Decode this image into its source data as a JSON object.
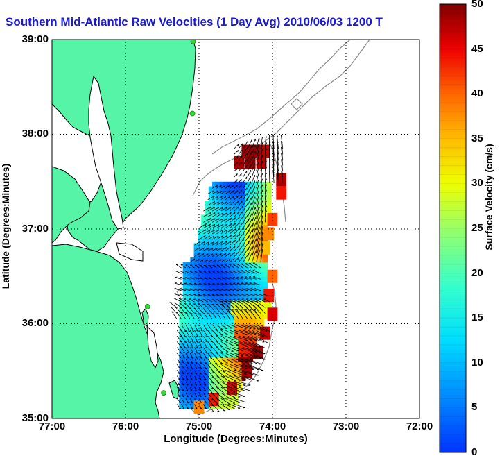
{
  "title": "Southern Mid-Atlantic Raw Velocities (1 Day Avg) 2010/06/03 1200 ",
  "title_suffix": "T",
  "axes": {
    "xlabel": "Longitude (Degrees:Minutes)",
    "ylabel": "Latitude (Degrees:Minutes)",
    "xticks": [
      "77:00",
      "76:00",
      "75:00",
      "74:00",
      "73:00",
      "72:00"
    ],
    "yticks": [
      "39:00",
      "38:00",
      "37:00",
      "36:00",
      "35:00"
    ],
    "xlim": [
      -77,
      -72
    ],
    "ylim": [
      35,
      39
    ],
    "grid": true
  },
  "colorbar": {
    "label": "Surface Velocity (cm/s)",
    "ticks": [
      "50",
      "45",
      "40",
      "35",
      "30",
      "25",
      "20",
      "15",
      "10",
      "5",
      "0"
    ],
    "range": [
      0,
      50
    ],
    "colormap": "jet"
  },
  "colors": {
    "land": "#55f4a6",
    "coastline": "#000000",
    "bathymetry": "#8a8a8a",
    "title": "#1a1ad6",
    "station": "#33dd33"
  },
  "stations": [
    {
      "lon": -75.08,
      "lat": 38.98
    },
    {
      "lon": -75.09,
      "lat": 38.22
    },
    {
      "lon": -75.7,
      "lat": 36.18
    },
    {
      "lon": -75.48,
      "lat": 35.27
    }
  ],
  "field_cells": [
    {
      "lon": -74.35,
      "lat": 37.82,
      "v": 49
    },
    {
      "lon": -74.23,
      "lat": 37.82,
      "v": 49
    },
    {
      "lon": -74.1,
      "lat": 37.82,
      "v": 47
    },
    {
      "lon": -74.45,
      "lat": 37.7,
      "v": 48
    },
    {
      "lon": -74.3,
      "lat": 37.7,
      "v": 49
    },
    {
      "lon": -74.15,
      "lat": 37.7,
      "v": 47
    },
    {
      "lon": -73.88,
      "lat": 37.52,
      "v": 48
    },
    {
      "lon": -73.88,
      "lat": 37.38,
      "v": 44
    },
    {
      "lon": -74.0,
      "lat": 37.1,
      "v": 42
    },
    {
      "lon": -74.05,
      "lat": 36.95,
      "v": 38
    },
    {
      "lon": -74.1,
      "lat": 36.8,
      "v": 35
    },
    {
      "lon": -74.0,
      "lat": 36.5,
      "v": 40
    },
    {
      "lon": -74.05,
      "lat": 36.3,
      "v": 44
    },
    {
      "lon": -74.0,
      "lat": 36.1,
      "v": 46
    },
    {
      "lon": -74.1,
      "lat": 35.9,
      "v": 47
    },
    {
      "lon": -74.2,
      "lat": 35.7,
      "v": 49
    },
    {
      "lon": -74.35,
      "lat": 35.5,
      "v": 48
    },
    {
      "lon": -74.55,
      "lat": 35.32,
      "v": 46
    },
    {
      "lon": -74.8,
      "lat": 35.2,
      "v": 44
    },
    {
      "lon": -75.0,
      "lat": 35.12,
      "v": 38
    }
  ]
}
